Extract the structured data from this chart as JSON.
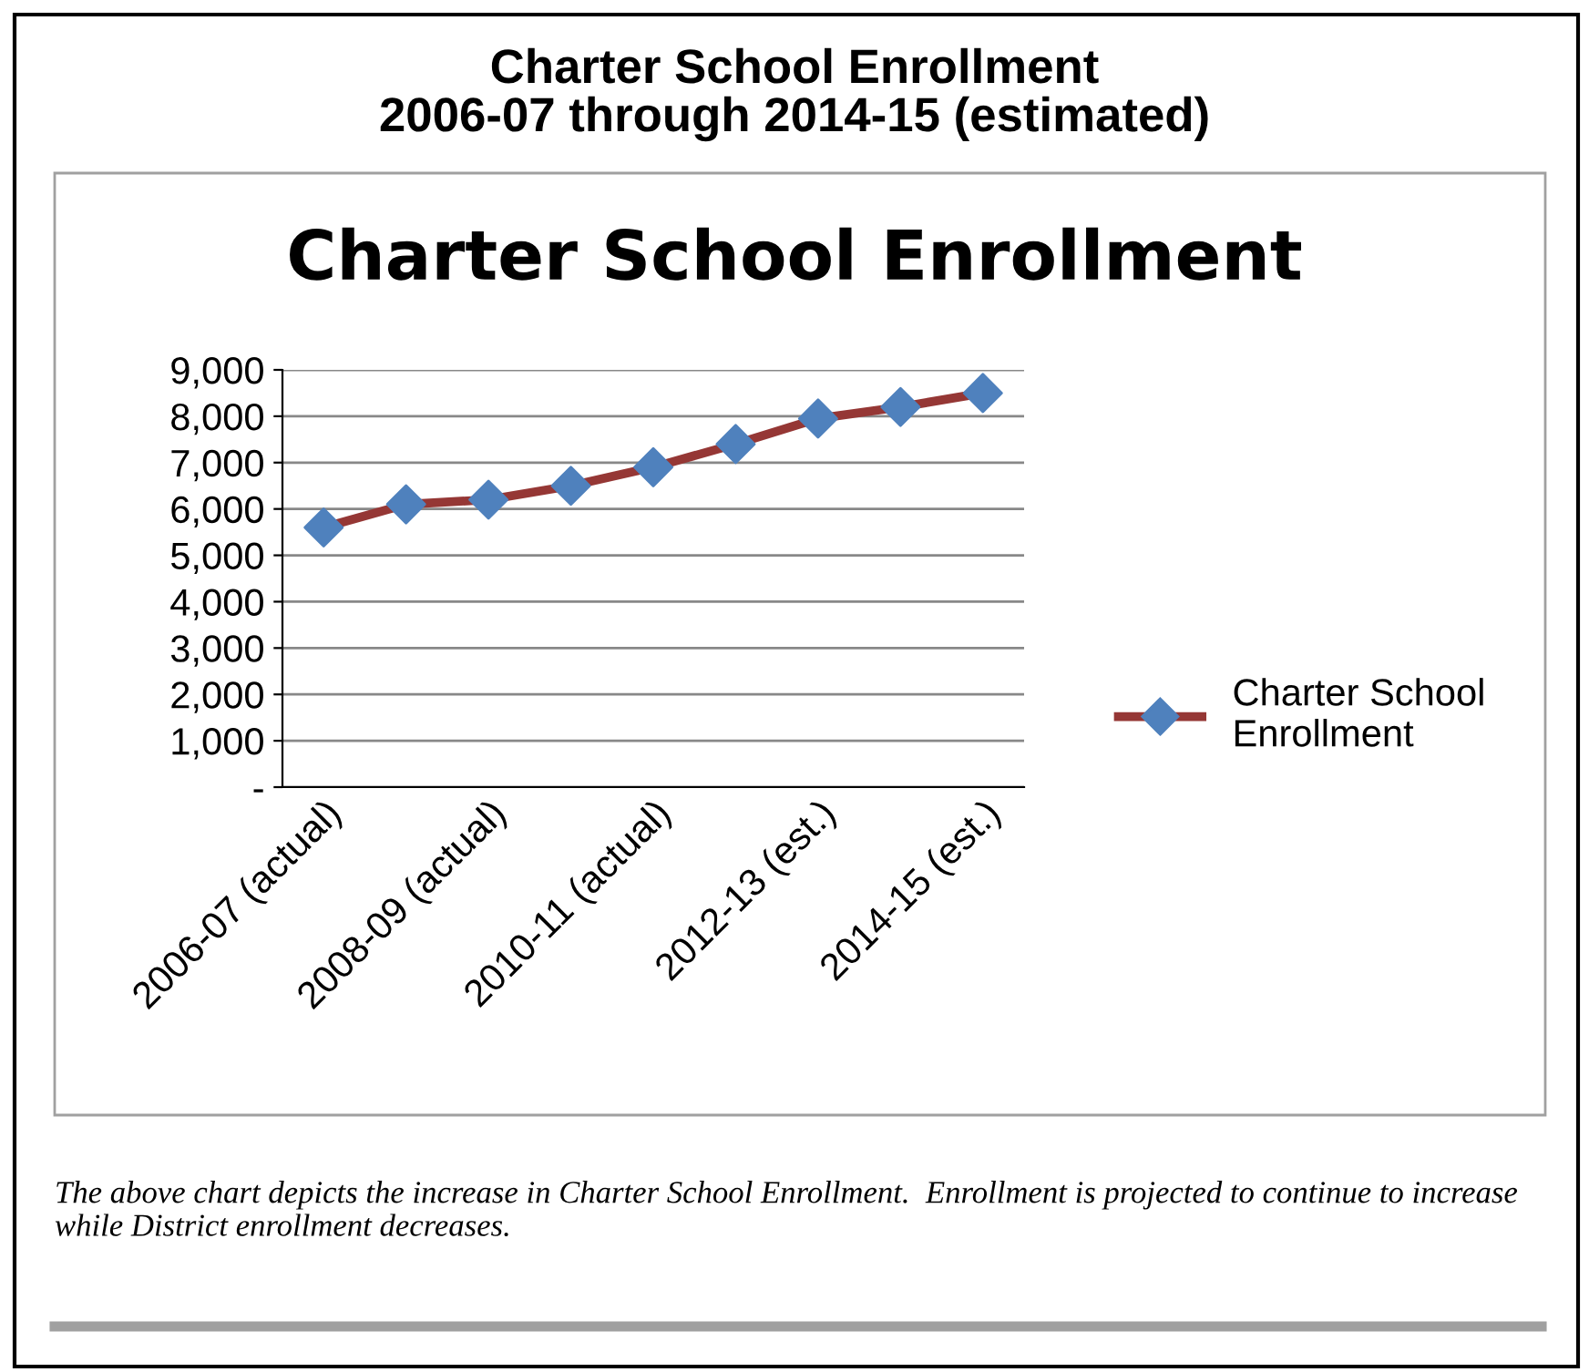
{
  "chart_data": {
    "type": "line",
    "title": "Charter School Enrollment\n2006-07 through 2014-15 (estimated)",
    "subtitle": "Charter School Enrollment",
    "categories": [
      "2006-07 (actual)",
      null,
      "2008-09 (actual)",
      null,
      "2010-11 (actual)",
      null,
      "2012-13 (est.)",
      null,
      "2014-15 (est.)"
    ],
    "series": [
      {
        "name": "Charter School\nEnrollment",
        "color": "#953735",
        "colors": [
          "#4f81bd",
          "#4f81bd",
          "#4f81bd",
          "#4f81bd",
          "#4f81bd",
          "#4f81bd",
          "#4f81bd",
          "#4f81bd",
          "#4f81bd"
        ],
        "values": [
          5600,
          6100,
          6200,
          6500,
          6900,
          7400,
          7950,
          8200,
          8500
        ]
      }
    ],
    "ylim": [
      0,
      9000
    ],
    "yticks": [
      {
        "value": 0,
        "label": "-"
      },
      {
        "value": 1000,
        "label": "1,000"
      },
      {
        "value": 2000,
        "label": "2,000"
      },
      {
        "value": 3000,
        "label": "3,000"
      },
      {
        "value": 4000,
        "label": "4,000"
      },
      {
        "value": 5000,
        "label": "5,000"
      },
      {
        "value": 6000,
        "label": "6,000"
      },
      {
        "value": 7000,
        "label": "7,000"
      },
      {
        "value": 8000,
        "label": "8,000"
      },
      {
        "value": 9000,
        "label": "9,000"
      }
    ],
    "grid": "y",
    "legend": "right",
    "marker": "diamond",
    "line_style": "solid",
    "annotations": [
      "The above chart depicts the increase in Charter School Enrollment.  Enrollment is projected to continue to increase while District enrollment decreases."
    ]
  }
}
